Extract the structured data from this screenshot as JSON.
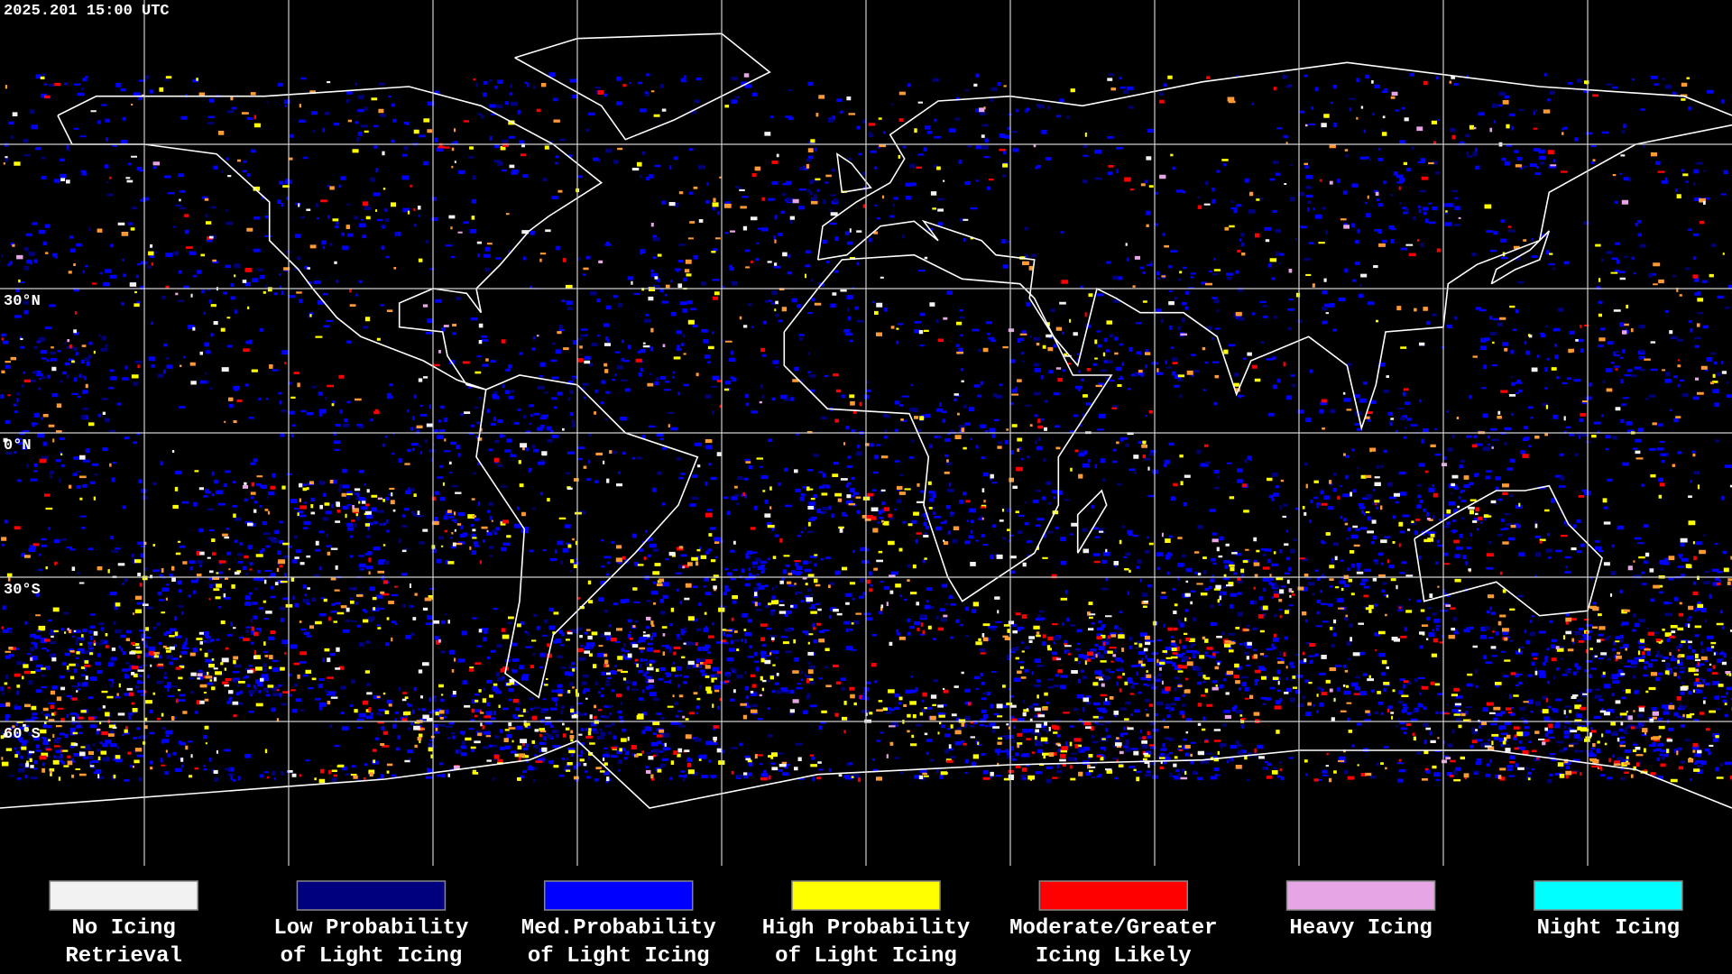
{
  "header": {
    "timestamp": "2025.201 15:00 UTC"
  },
  "map": {
    "lat_labels": [
      "30°N",
      "0°N",
      "30°S",
      "60°S"
    ]
  },
  "legend": [
    {
      "label": [
        "No Icing",
        "Retrieval"
      ],
      "color": "#f2f2f2"
    },
    {
      "label": [
        "Low Probability",
        "of Light Icing"
      ],
      "color": "#00007f"
    },
    {
      "label": [
        "Med.Probability",
        "of Light Icing"
      ],
      "color": "#0000ff"
    },
    {
      "label": [
        "High Probability",
        "of Light Icing"
      ],
      "color": "#ffff00"
    },
    {
      "label": [
        "Moderate/Greater",
        "Icing Likely"
      ],
      "color": "#ff0000"
    },
    {
      "label": [
        "Heavy Icing"
      ],
      "color": "#e6a6e6"
    },
    {
      "label": [
        "Night Icing"
      ],
      "color": "#00ffff"
    }
  ]
}
